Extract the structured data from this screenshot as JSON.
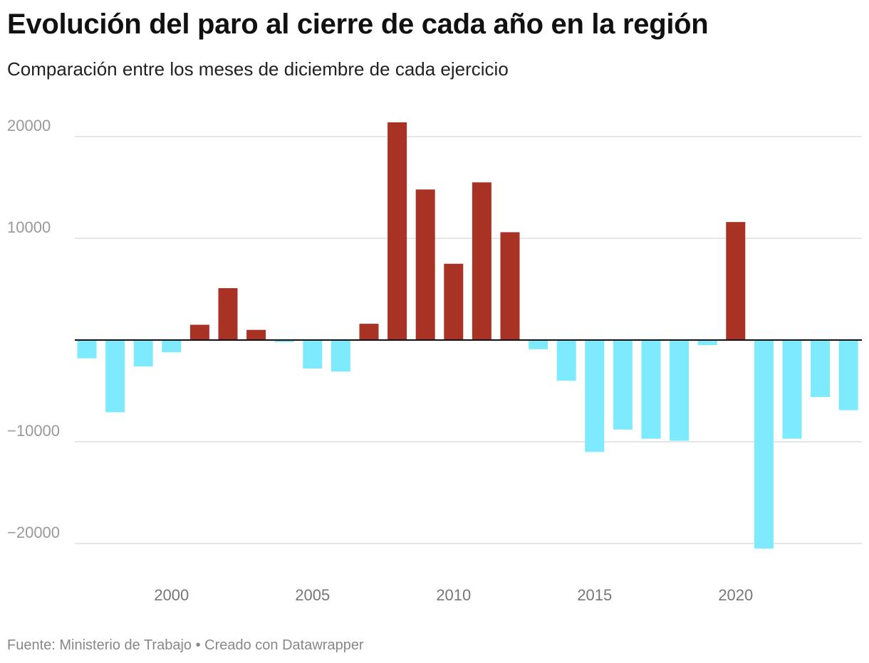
{
  "header": {
    "title": "Evolución del paro al cierre de cada año en la región",
    "subtitle": "Comparación entre los meses de diciembre de cada ejercicio"
  },
  "footer": {
    "source": "Fuente: Ministerio de Trabajo • Creado con Datawrapper"
  },
  "colors": {
    "positive": "#a83224",
    "negative": "#7eeafd",
    "grid": "#dddddd",
    "zero_line": "#111111"
  },
  "chart_data": {
    "type": "bar",
    "title": "Evolución del paro al cierre de cada año en la región",
    "subtitle": "Comparación entre los meses de diciembre de cada ejercicio",
    "xlabel": "",
    "ylabel": "",
    "ylim": [
      -22000,
      22000
    ],
    "grid": true,
    "y_ticks": [
      20000,
      10000,
      -10000,
      -20000
    ],
    "y_tick_labels": [
      "20000",
      "10000",
      "−10000",
      "−20000"
    ],
    "x_ticks": [
      2000,
      2005,
      2010,
      2015,
      2020
    ],
    "x_tick_labels": [
      "2000",
      "2005",
      "2010",
      "2015",
      "2020"
    ],
    "categories": [
      1997,
      1998,
      1999,
      2000,
      2001,
      2002,
      2003,
      2004,
      2005,
      2006,
      2007,
      2008,
      2009,
      2010,
      2011,
      2012,
      2013,
      2014,
      2015,
      2016,
      2017,
      2018,
      2019,
      2020,
      2021,
      2022,
      2023,
      2024
    ],
    "values": [
      -1800,
      -7100,
      -2600,
      -1200,
      1500,
      5100,
      1000,
      -200,
      -2800,
      -3100,
      1600,
      21400,
      14800,
      7500,
      15500,
      10600,
      -900,
      -4000,
      -11000,
      -8800,
      -9700,
      -9900,
      -500,
      11600,
      -20500,
      -9700,
      -5600,
      -6900
    ]
  }
}
